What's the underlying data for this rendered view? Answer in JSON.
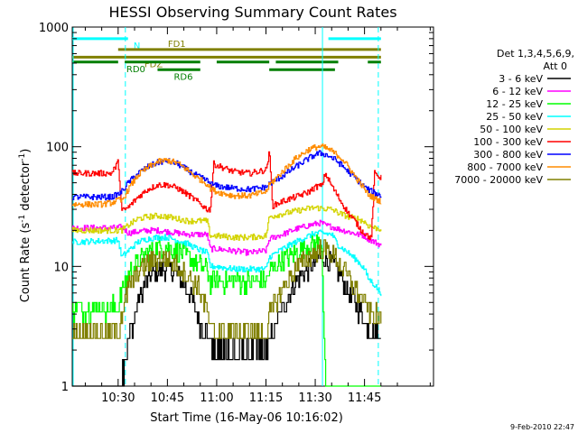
{
  "chart_data": {
    "type": "line",
    "title": "HESSI Observing Summary Count Rates",
    "xlabel": "Start Time (16-May-06 10:16:02)",
    "ylabel_main": "Count Rate (s",
    "ylabel_sup1": "-1",
    "ylabel_mid": " detector",
    "ylabel_sup2": "-1",
    "ylabel_end": ")",
    "yscale": "log",
    "ylim": [
      1,
      1000
    ],
    "xlim": [
      16.03,
      126.0
    ],
    "x_unit": "minutes after 10:00",
    "x_ticks": [
      {
        "x": 30,
        "label": "10:30"
      },
      {
        "x": 45,
        "label": "10:45"
      },
      {
        "x": 60,
        "label": "11:00"
      },
      {
        "x": 75,
        "label": "11:15"
      },
      {
        "x": 90,
        "label": "11:30"
      },
      {
        "x": 105,
        "label": "11:45"
      }
    ],
    "y_ticks": [
      {
        "y": 1,
        "label": "1"
      },
      {
        "y": 10,
        "label": "10"
      },
      {
        "y": 100,
        "label": "100"
      },
      {
        "y": 1000,
        "label": "1000"
      }
    ],
    "legend_header": [
      "Det 1,3,4,5,6,9,",
      "Att 0"
    ],
    "legend_position": "right",
    "series": [
      {
        "name": "3 - 6 keV",
        "color": "#000000",
        "x": [
          16,
          30,
          31.5,
          33,
          36,
          38,
          40,
          43,
          45,
          48,
          50,
          52,
          54,
          56,
          58,
          60,
          65,
          70,
          75,
          77,
          79,
          82,
          85,
          88,
          89,
          90,
          91,
          92,
          94,
          96,
          98,
          100,
          103,
          105,
          108,
          110
        ],
        "y": [
          1,
          1,
          1.2,
          2.5,
          5,
          7,
          8.5,
          9.5,
          9.5,
          8.5,
          7,
          5.5,
          4,
          3,
          2.4,
          2,
          2,
          2,
          2,
          2.8,
          4,
          6,
          8,
          9.5,
          10,
          11,
          12,
          12,
          11,
          10,
          8,
          6,
          4.5,
          3.5,
          2.8,
          2.5
        ]
      },
      {
        "name": "6 - 12 keV",
        "color": "#ff00ff",
        "x": [
          16,
          30,
          31,
          33,
          36,
          39,
          42,
          45,
          48,
          51,
          54,
          57,
          58,
          60,
          65,
          70,
          75,
          76,
          80,
          84,
          88,
          91,
          92,
          93,
          95,
          97,
          100,
          103,
          105,
          106,
          108,
          110
        ],
        "y": [
          21,
          21,
          21.5,
          19,
          19.5,
          20,
          20,
          19.5,
          19,
          18.5,
          18.5,
          18.5,
          14,
          14,
          13.5,
          13,
          13.5,
          17,
          18.5,
          20.5,
          22,
          23,
          23,
          22,
          21.5,
          20.5,
          19.5,
          18.5,
          18,
          17,
          16,
          15
        ]
      },
      {
        "name": "12 - 25 keV",
        "color": "#00ff00",
        "x": [
          16,
          30,
          31,
          33,
          36,
          39,
          42,
          45,
          48,
          51,
          54,
          57,
          58,
          60,
          65,
          70,
          75,
          76,
          80,
          84,
          88,
          90,
          91,
          92,
          93,
          95,
          97,
          100,
          103,
          105,
          106,
          108,
          110
        ],
        "y": [
          4.5,
          4.5,
          6,
          8.5,
          11,
          13,
          14.5,
          14.5,
          13.5,
          12,
          10.5,
          9.5,
          7.5,
          7.5,
          7.5,
          7.5,
          7.5,
          9,
          11.5,
          13,
          15,
          15.5,
          15.5,
          15.5,
          1,
          1,
          1,
          1,
          1,
          1,
          1,
          1,
          1
        ]
      },
      {
        "name": "25 - 50 keV",
        "color": "#00ffff",
        "x": [
          16,
          30,
          31,
          33,
          36,
          39,
          42,
          45,
          48,
          51,
          54,
          57,
          58,
          60,
          65,
          70,
          75,
          76,
          80,
          84,
          88,
          90,
          92,
          95,
          97,
          100,
          103,
          105,
          106,
          108,
          110
        ],
        "y": [
          16,
          16.5,
          12,
          13.5,
          16,
          17,
          17.5,
          17.5,
          16.5,
          15.5,
          14,
          13,
          10,
          10,
          9.5,
          9.5,
          9.5,
          12,
          14,
          16,
          18,
          19,
          19,
          18.5,
          15,
          13,
          11,
          9.5,
          8,
          7,
          6
        ]
      },
      {
        "name": "50 - 100 keV",
        "color": "#d4d400",
        "x": [
          16,
          30,
          31,
          33,
          36,
          39,
          42,
          45,
          48,
          51,
          54,
          57,
          58,
          60,
          65,
          70,
          75,
          76,
          80,
          84,
          88,
          90,
          92,
          95,
          97,
          100,
          103,
          105,
          106,
          108,
          110
        ],
        "y": [
          20,
          20,
          20,
          22,
          25,
          26,
          26.5,
          26,
          25,
          24,
          24,
          24,
          18,
          18,
          17.5,
          17.5,
          18,
          26,
          27.5,
          29,
          30.5,
          31,
          30.5,
          30,
          28,
          26,
          25,
          23.5,
          22,
          21,
          20.5
        ]
      },
      {
        "name": "100 - 300 keV",
        "color": "#ff0000",
        "x": [
          16,
          25,
          28,
          30,
          31,
          33,
          36,
          39,
          42,
          45,
          48,
          51,
          54,
          57,
          58,
          59,
          60,
          65,
          70,
          75,
          76,
          77,
          80,
          84,
          88,
          90,
          91,
          92,
          93,
          95,
          98,
          100,
          102,
          104,
          106,
          107,
          108,
          110
        ],
        "y": [
          60,
          60,
          60,
          75,
          29,
          31,
          38,
          44,
          48,
          48,
          45,
          40,
          35,
          30,
          30,
          72,
          70,
          62,
          60,
          64,
          90,
          32,
          35,
          38,
          42,
          46,
          47,
          47,
          60,
          47,
          34,
          28,
          24,
          20,
          18,
          17,
          60,
          55
        ]
      },
      {
        "name": "300 - 800 keV",
        "color": "#0000ff",
        "x": [
          16,
          25,
          28,
          30,
          31,
          33,
          36,
          39,
          42,
          45,
          48,
          51,
          54,
          57,
          58,
          60,
          65,
          70,
          75,
          76,
          80,
          84,
          88,
          90,
          91,
          92,
          94,
          96,
          98,
          100,
          103,
          105,
          106,
          108,
          110
        ],
        "y": [
          38,
          38,
          38,
          40,
          42,
          50,
          60,
          68,
          74,
          76,
          72,
          64,
          57,
          52,
          49,
          47,
          45,
          44,
          46,
          49,
          57,
          68,
          80,
          86,
          88,
          88,
          84,
          78,
          70,
          62,
          52,
          46,
          44,
          41,
          39
        ]
      },
      {
        "name": "800 - 7000 keV",
        "color": "#ff8c00",
        "x": [
          16,
          25,
          28,
          30,
          31,
          33,
          36,
          39,
          42,
          45,
          48,
          51,
          54,
          57,
          58,
          60,
          65,
          70,
          75,
          76,
          80,
          84,
          88,
          90,
          91,
          92,
          93,
          95,
          98,
          100,
          103,
          105,
          106,
          108,
          110
        ],
        "y": [
          33,
          33,
          34,
          36,
          35,
          44,
          58,
          67,
          75,
          77,
          73,
          64,
          55,
          49,
          45,
          42,
          39,
          39,
          42,
          48,
          62,
          80,
          95,
          99,
          100,
          100,
          98,
          92,
          80,
          68,
          52,
          44,
          40,
          37,
          35
        ]
      },
      {
        "name": "7000 - 20000 keV",
        "color": "#808000",
        "x": [
          16,
          30,
          31,
          33,
          36,
          39,
          42,
          45,
          48,
          51,
          54,
          57,
          58,
          60,
          65,
          70,
          75,
          76,
          80,
          84,
          88,
          90,
          91,
          92,
          94,
          96,
          98,
          100,
          103,
          105,
          106,
          108,
          110
        ],
        "y": [
          2.8,
          2.8,
          4,
          6.5,
          9,
          10.5,
          11.5,
          11.5,
          10,
          8.5,
          7,
          4.5,
          2.8,
          2.8,
          2.8,
          2.8,
          2.8,
          4,
          6.5,
          9.5,
          12,
          13,
          13.5,
          14,
          13.5,
          12,
          10,
          8,
          6,
          5,
          4.5,
          4,
          3.5
        ]
      }
    ],
    "flags": [
      {
        "label": "N",
        "color": "#00ffff",
        "level": 800,
        "segments": [
          [
            16,
            33
          ],
          [
            94,
            110
          ]
        ]
      },
      {
        "label": "FD1",
        "color": "#808000",
        "level": 650,
        "segments": [
          [
            30,
            110
          ]
        ]
      },
      {
        "label": "FDZ",
        "color": "#808000",
        "level": 560,
        "segments": [
          [
            16,
            110
          ]
        ]
      },
      {
        "label": "RD0",
        "color": "#007f00",
        "level": 510,
        "segments": [
          [
            16,
            30
          ],
          [
            32,
            55
          ],
          [
            60,
            76
          ],
          [
            78,
            97
          ],
          [
            106,
            110
          ]
        ]
      },
      {
        "label": "RD6",
        "color": "#007f00",
        "level": 440,
        "segments": [
          [
            42,
            55
          ],
          [
            76,
            96
          ]
        ]
      }
    ],
    "vertical_markers": [
      {
        "x": 32.2,
        "color": "#00ffff",
        "style": "dashed"
      },
      {
        "x": 92.2,
        "color": "#00ffff",
        "style": "solid"
      },
      {
        "x": 109.2,
        "color": "#00ffff",
        "style": "dashed"
      }
    ],
    "left_edge_marker": {
      "color": "#00ffff"
    }
  },
  "footer": {
    "timestamp": "9-Feb-2010 22:47"
  }
}
